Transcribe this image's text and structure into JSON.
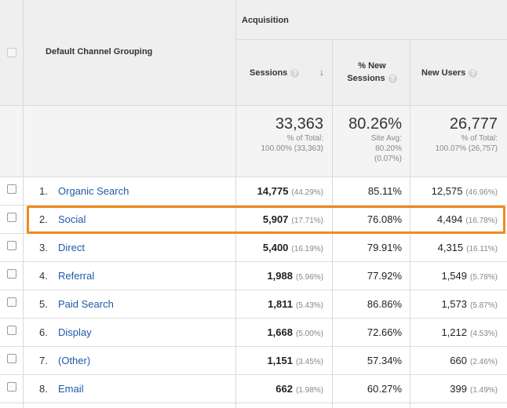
{
  "header": {
    "group_label": "Acquisition",
    "dimension_label": "Default Channel Grouping",
    "columns": [
      {
        "label": "Sessions",
        "help": "?",
        "sorted": "desc"
      },
      {
        "label_line1": "% New",
        "label_line2": "Sessions",
        "help": "?"
      },
      {
        "label": "New Users",
        "help": "?"
      }
    ]
  },
  "totals": {
    "sessions": {
      "value": "33,363",
      "line1": "% of Total:",
      "line2": "100.00% (33,363)"
    },
    "new_sessions": {
      "value": "80.26%",
      "line1": "Site Avg:",
      "line2": "80.20%",
      "line3": "(0.07%)"
    },
    "new_users": {
      "value": "26,777",
      "line1": "% of Total:",
      "line2": "100.07% (26,757)"
    }
  },
  "rows": [
    {
      "rank": "1.",
      "channel": "Organic Search",
      "sessions": "14,775",
      "sessions_pct": "(44.29%)",
      "new_sessions": "85.11%",
      "new_users": "12,575",
      "new_users_pct": "(46.96%)"
    },
    {
      "rank": "2.",
      "channel": "Social",
      "sessions": "5,907",
      "sessions_pct": "(17.71%)",
      "new_sessions": "76.08%",
      "new_users": "4,494",
      "new_users_pct": "(16.78%)"
    },
    {
      "rank": "3.",
      "channel": "Direct",
      "sessions": "5,400",
      "sessions_pct": "(16.19%)",
      "new_sessions": "79.91%",
      "new_users": "4,315",
      "new_users_pct": "(16.11%)"
    },
    {
      "rank": "4.",
      "channel": "Referral",
      "sessions": "1,988",
      "sessions_pct": "(5.96%)",
      "new_sessions": "77.92%",
      "new_users": "1,549",
      "new_users_pct": "(5.78%)"
    },
    {
      "rank": "5.",
      "channel": "Paid Search",
      "sessions": "1,811",
      "sessions_pct": "(5.43%)",
      "new_sessions": "86.86%",
      "new_users": "1,573",
      "new_users_pct": "(5.87%)"
    },
    {
      "rank": "6.",
      "channel": "Display",
      "sessions": "1,668",
      "sessions_pct": "(5.00%)",
      "new_sessions": "72.66%",
      "new_users": "1,212",
      "new_users_pct": "(4.53%)"
    },
    {
      "rank": "7.",
      "channel": "(Other)",
      "sessions": "1,151",
      "sessions_pct": "(3.45%)",
      "new_sessions": "57.34%",
      "new_users": "660",
      "new_users_pct": "(2.46%)"
    },
    {
      "rank": "8.",
      "channel": "Email",
      "sessions": "662",
      "sessions_pct": "(1.98%)",
      "new_sessions": "60.27%",
      "new_users": "399",
      "new_users_pct": "(1.49%)"
    }
  ],
  "highlight_color": "#f08a1c",
  "link_color": "#1e5aa8"
}
